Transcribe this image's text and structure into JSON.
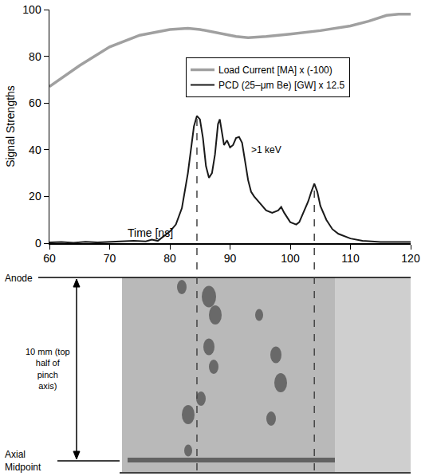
{
  "chart_data": {
    "type": "line",
    "ylabel": "Signal Strengths",
    "xlabel": "Time [ns]",
    "xlim": [
      60,
      120
    ],
    "xticks": [
      60,
      70,
      80,
      90,
      100,
      110,
      120
    ],
    "ylim": [
      0,
      100
    ],
    "yticks": [
      0,
      20,
      40,
      60,
      80,
      100
    ],
    "grid": false,
    "legend": "upper right",
    "series": [
      {
        "name": "Load Current [MA] x (-100)",
        "color": "#a0a0a0",
        "x": [
          60,
          65,
          70,
          75,
          80,
          83,
          85,
          88,
          91,
          93,
          96,
          100,
          105,
          110,
          113,
          116,
          118,
          120
        ],
        "values": [
          67,
          76,
          84,
          89,
          91.5,
          92,
          91.5,
          90,
          88.5,
          88,
          88.5,
          89.5,
          91,
          93,
          95,
          97.5,
          98,
          98
        ]
      },
      {
        "name": "PCD (25–μm Be) [GW] x 12.5",
        "color": "#1a1a1a",
        "x": [
          60,
          62,
          64,
          66,
          68,
          70,
          72,
          74,
          76,
          77,
          78,
          79,
          80,
          81,
          82,
          83,
          84,
          84.5,
          85,
          85.5,
          86,
          86.5,
          87,
          87.5,
          88,
          88.3,
          88.7,
          89,
          89.5,
          90,
          90.5,
          91,
          91.5,
          92,
          92.5,
          93,
          93.5,
          94,
          95,
          96,
          97,
          98,
          98.5,
          99,
          100,
          101,
          101.5,
          102,
          103,
          103.5,
          104,
          104.5,
          105,
          106,
          107,
          108,
          109,
          110,
          112,
          115,
          120
        ],
        "values": [
          0.3,
          0.5,
          0.2,
          0.6,
          0.3,
          0.5,
          0.8,
          1,
          0.8,
          1.5,
          1,
          3,
          5,
          8,
          15,
          30,
          50,
          54.5,
          53,
          45,
          33,
          28,
          30,
          38,
          51,
          53,
          47,
          42,
          44,
          41,
          42,
          45,
          45.5,
          43,
          35,
          27,
          22,
          20,
          17,
          14,
          13,
          14,
          15.5,
          13,
          9,
          8,
          9,
          12,
          18,
          22,
          25.5,
          22,
          16,
          10,
          6,
          4,
          3,
          2,
          1,
          0.5,
          0.5
        ]
      }
    ],
    "annotations": [
      {
        "text": ">1 keV",
        "x": 96,
        "y": 40
      }
    ],
    "dashed_lines": [
      {
        "x": 84.5,
        "y": 54.5
      },
      {
        "x": 104,
        "y": 25.5
      }
    ],
    "image_panel": {
      "top_label": "Anode",
      "span_label": "10 mm (top half of pinch axis)",
      "bottom_label": "Axial Midpoint"
    }
  }
}
